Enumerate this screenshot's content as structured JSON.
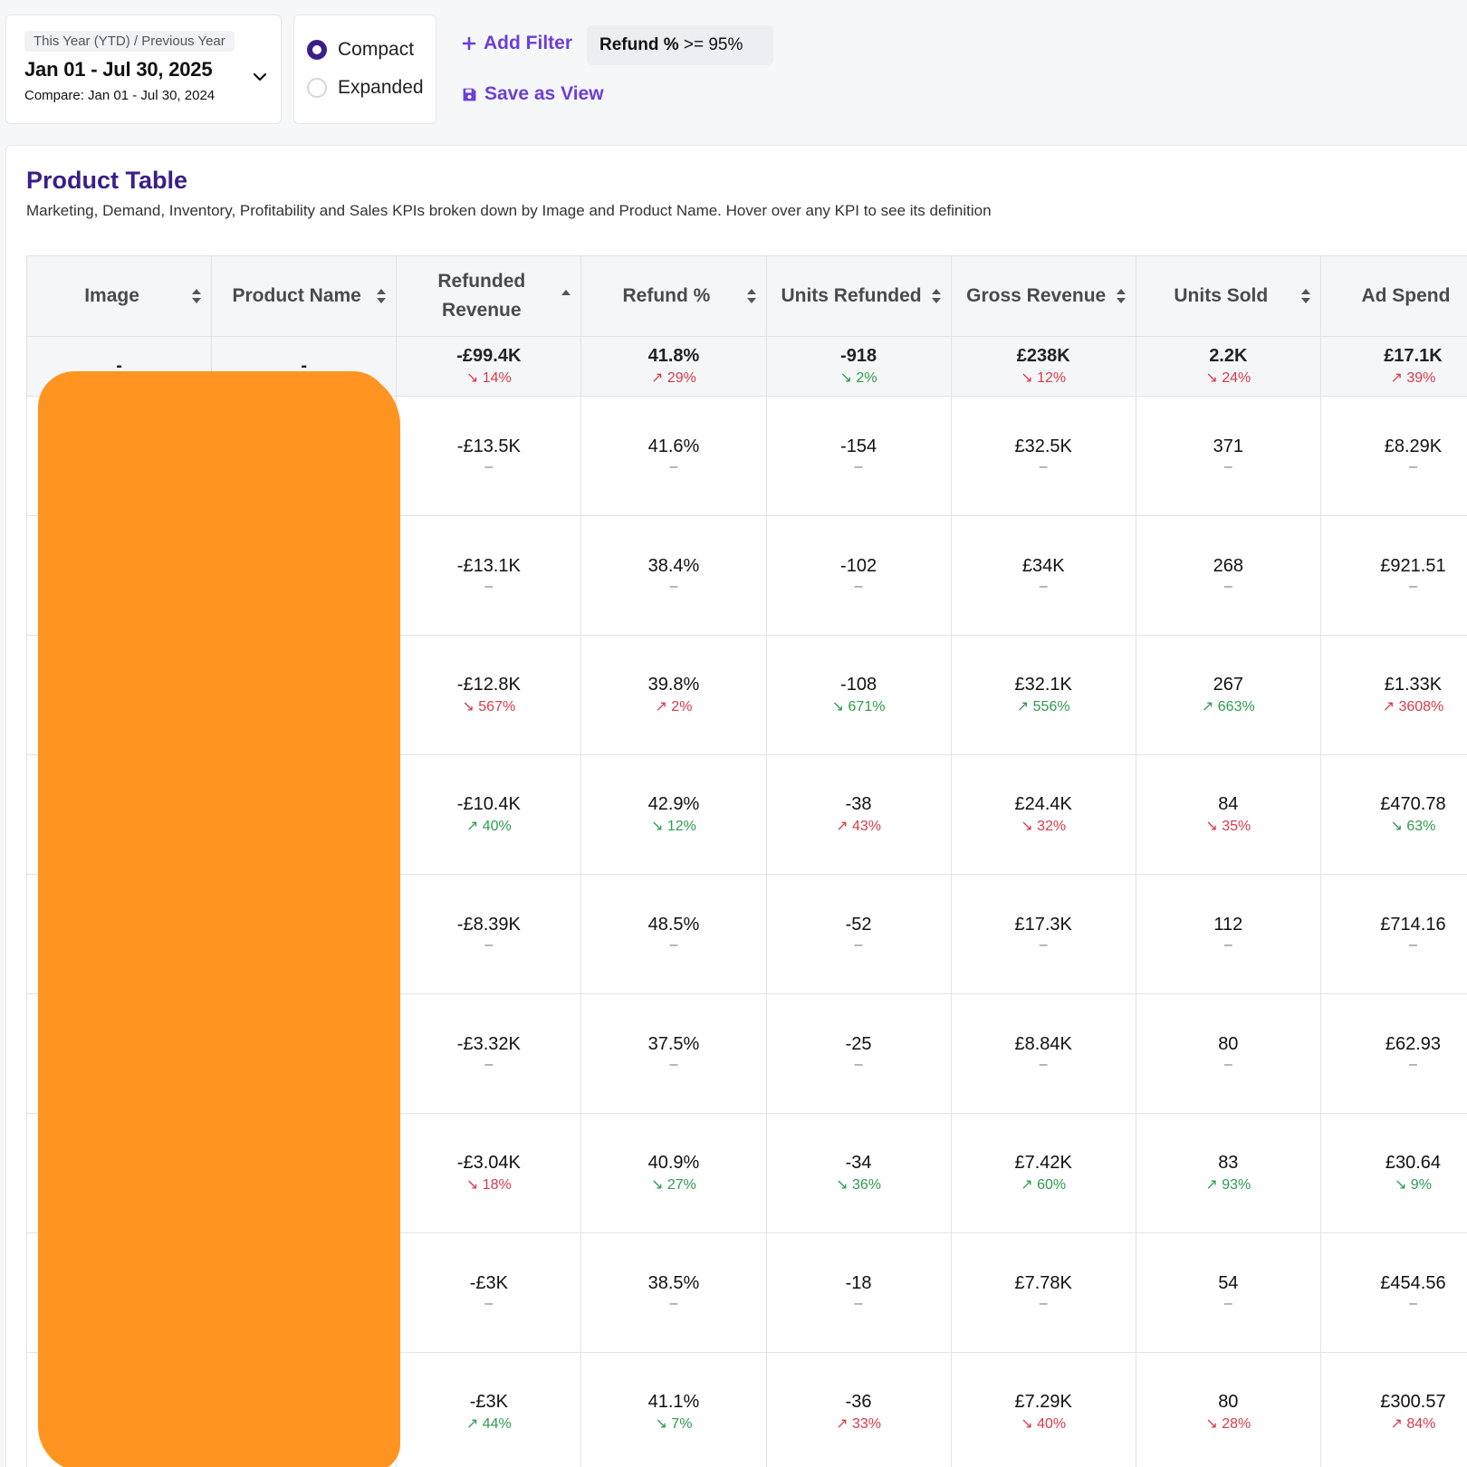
{
  "date_picker": {
    "tag": "This Year (YTD) / Previous Year",
    "range": "Jan 01 - Jul 30, 2025",
    "compare": "Compare: Jan 01 - Jul 30, 2024"
  },
  "view_mode": {
    "options": [
      {
        "label": "Compact",
        "selected": true
      },
      {
        "label": "Expanded",
        "selected": false
      }
    ]
  },
  "toolbar": {
    "add_filter": "Add Filter",
    "filter_chip_key": "Refund %",
    "filter_chip_value": ">= 95%",
    "save_view": "Save as View"
  },
  "panel": {
    "title": "Product Table",
    "subtitle": "Marketing, Demand, Inventory, Profitability and Sales KPIs broken down by Image and Product Name. Hover over any KPI to see its definition"
  },
  "table": {
    "headers": [
      "Image",
      "Product Name",
      "Refunded Revenue",
      "Refund %",
      "Units Refunded",
      "Gross Revenue",
      "Units Sold",
      "Ad Spend"
    ],
    "summary": {
      "image": "-",
      "name": "-",
      "cells": [
        {
          "v": "-£99.4K",
          "d": "14%",
          "dir": "down",
          "tone": "red"
        },
        {
          "v": "41.8%",
          "d": "29%",
          "dir": "up",
          "tone": "red"
        },
        {
          "v": "-918",
          "d": "2%",
          "dir": "down",
          "tone": "green"
        },
        {
          "v": "£238K",
          "d": "12%",
          "dir": "down",
          "tone": "red"
        },
        {
          "v": "2.2K",
          "d": "24%",
          "dir": "down",
          "tone": "red"
        },
        {
          "v": "£17.1K",
          "d": "39%",
          "dir": "up",
          "tone": "red"
        }
      ]
    },
    "rows": [
      {
        "cells": [
          {
            "v": "-£13.5K",
            "d": "–",
            "tone": "dash"
          },
          {
            "v": "41.6%",
            "d": "–",
            "tone": "dash"
          },
          {
            "v": "-154",
            "d": "–",
            "tone": "dash"
          },
          {
            "v": "£32.5K",
            "d": "–",
            "tone": "dash"
          },
          {
            "v": "371",
            "d": "–",
            "tone": "dash"
          },
          {
            "v": "£8.29K",
            "d": "–",
            "tone": "dash"
          }
        ]
      },
      {
        "cells": [
          {
            "v": "-£13.1K",
            "d": "–",
            "tone": "dash"
          },
          {
            "v": "38.4%",
            "d": "–",
            "tone": "dash"
          },
          {
            "v": "-102",
            "d": "–",
            "tone": "dash"
          },
          {
            "v": "£34K",
            "d": "–",
            "tone": "dash"
          },
          {
            "v": "268",
            "d": "–",
            "tone": "dash"
          },
          {
            "v": "£921.51",
            "d": "–",
            "tone": "dash"
          }
        ]
      },
      {
        "cells": [
          {
            "v": "-£12.8K",
            "d": "567%",
            "dir": "down",
            "tone": "red"
          },
          {
            "v": "39.8%",
            "d": "2%",
            "dir": "up",
            "tone": "red"
          },
          {
            "v": "-108",
            "d": "671%",
            "dir": "down",
            "tone": "green"
          },
          {
            "v": "£32.1K",
            "d": "556%",
            "dir": "up",
            "tone": "green"
          },
          {
            "v": "267",
            "d": "663%",
            "dir": "up",
            "tone": "green"
          },
          {
            "v": "£1.33K",
            "d": "3608%",
            "dir": "up",
            "tone": "red"
          }
        ]
      },
      {
        "cells": [
          {
            "v": "-£10.4K",
            "d": "40%",
            "dir": "up",
            "tone": "green"
          },
          {
            "v": "42.9%",
            "d": "12%",
            "dir": "down",
            "tone": "green"
          },
          {
            "v": "-38",
            "d": "43%",
            "dir": "up",
            "tone": "red"
          },
          {
            "v": "£24.4K",
            "d": "32%",
            "dir": "down",
            "tone": "red"
          },
          {
            "v": "84",
            "d": "35%",
            "dir": "down",
            "tone": "red"
          },
          {
            "v": "£470.78",
            "d": "63%",
            "dir": "down",
            "tone": "green"
          }
        ]
      },
      {
        "cells": [
          {
            "v": "-£8.39K",
            "d": "–",
            "tone": "dash"
          },
          {
            "v": "48.5%",
            "d": "–",
            "tone": "dash"
          },
          {
            "v": "-52",
            "d": "–",
            "tone": "dash"
          },
          {
            "v": "£17.3K",
            "d": "–",
            "tone": "dash"
          },
          {
            "v": "112",
            "d": "–",
            "tone": "dash"
          },
          {
            "v": "£714.16",
            "d": "–",
            "tone": "dash"
          }
        ]
      },
      {
        "cells": [
          {
            "v": "-£3.32K",
            "d": "–",
            "tone": "dash"
          },
          {
            "v": "37.5%",
            "d": "–",
            "tone": "dash"
          },
          {
            "v": "-25",
            "d": "–",
            "tone": "dash"
          },
          {
            "v": "£8.84K",
            "d": "–",
            "tone": "dash"
          },
          {
            "v": "80",
            "d": "–",
            "tone": "dash"
          },
          {
            "v": "£62.93",
            "d": "–",
            "tone": "dash"
          }
        ]
      },
      {
        "cells": [
          {
            "v": "-£3.04K",
            "d": "18%",
            "dir": "down",
            "tone": "red"
          },
          {
            "v": "40.9%",
            "d": "27%",
            "dir": "down",
            "tone": "green"
          },
          {
            "v": "-34",
            "d": "36%",
            "dir": "down",
            "tone": "green"
          },
          {
            "v": "£7.42K",
            "d": "60%",
            "dir": "up",
            "tone": "green"
          },
          {
            "v": "83",
            "d": "93%",
            "dir": "up",
            "tone": "green"
          },
          {
            "v": "£30.64",
            "d": "9%",
            "dir": "down",
            "tone": "green"
          }
        ]
      },
      {
        "cells": [
          {
            "v": "-£3K",
            "d": "–",
            "tone": "dash"
          },
          {
            "v": "38.5%",
            "d": "–",
            "tone": "dash"
          },
          {
            "v": "-18",
            "d": "–",
            "tone": "dash"
          },
          {
            "v": "£7.78K",
            "d": "–",
            "tone": "dash"
          },
          {
            "v": "54",
            "d": "–",
            "tone": "dash"
          },
          {
            "v": "£454.56",
            "d": "–",
            "tone": "dash"
          }
        ]
      },
      {
        "cells": [
          {
            "v": "-£3K",
            "d": "44%",
            "dir": "up",
            "tone": "green"
          },
          {
            "v": "41.1%",
            "d": "7%",
            "dir": "down",
            "tone": "green"
          },
          {
            "v": "-36",
            "d": "33%",
            "dir": "up",
            "tone": "red"
          },
          {
            "v": "£7.29K",
            "d": "40%",
            "dir": "down",
            "tone": "red"
          },
          {
            "v": "80",
            "d": "28%",
            "dir": "down",
            "tone": "red"
          },
          {
            "v": "£300.57",
            "d": "84%",
            "dir": "up",
            "tone": "red"
          }
        ]
      }
    ]
  },
  "colors": {
    "accent": "#6b3fd8",
    "title": "#3a1e8a",
    "negative": "#d63b4a",
    "positive": "#2f9a4f",
    "redaction": "#ff9420"
  }
}
